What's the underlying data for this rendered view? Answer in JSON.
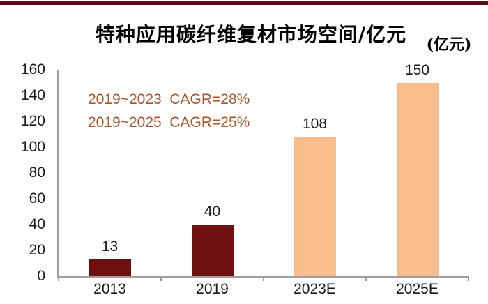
{
  "page": {
    "background": "#ffffff",
    "top_rule_color": "#5E0E10"
  },
  "chart_data": {
    "type": "bar",
    "title": "特种应用碳纤维复材市场空间/亿元",
    "unit_label": "(亿元)",
    "categories": [
      "2013",
      "2019",
      "2023E",
      "2025E"
    ],
    "values": [
      13,
      40,
      108,
      150
    ],
    "bar_colors": [
      "#6E0F12",
      "#6E0F12",
      "#F8BD8B",
      "#F8BD8B"
    ],
    "annotations": [
      "2019~2023  CAGR=28%",
      "2019~2025  CAGR=25%"
    ],
    "annotation_color": "#A8552A",
    "axis_color": "#9E9E9E",
    "data_label_color": "#1a1a1a",
    "xlabel": "",
    "ylabel": "",
    "ylim": [
      0,
      160
    ],
    "ytick_step": 20,
    "ytick_labels": [
      "0",
      "20",
      "40",
      "60",
      "80",
      "100",
      "120",
      "140",
      "160"
    ],
    "grid": false,
    "legend": "none"
  }
}
